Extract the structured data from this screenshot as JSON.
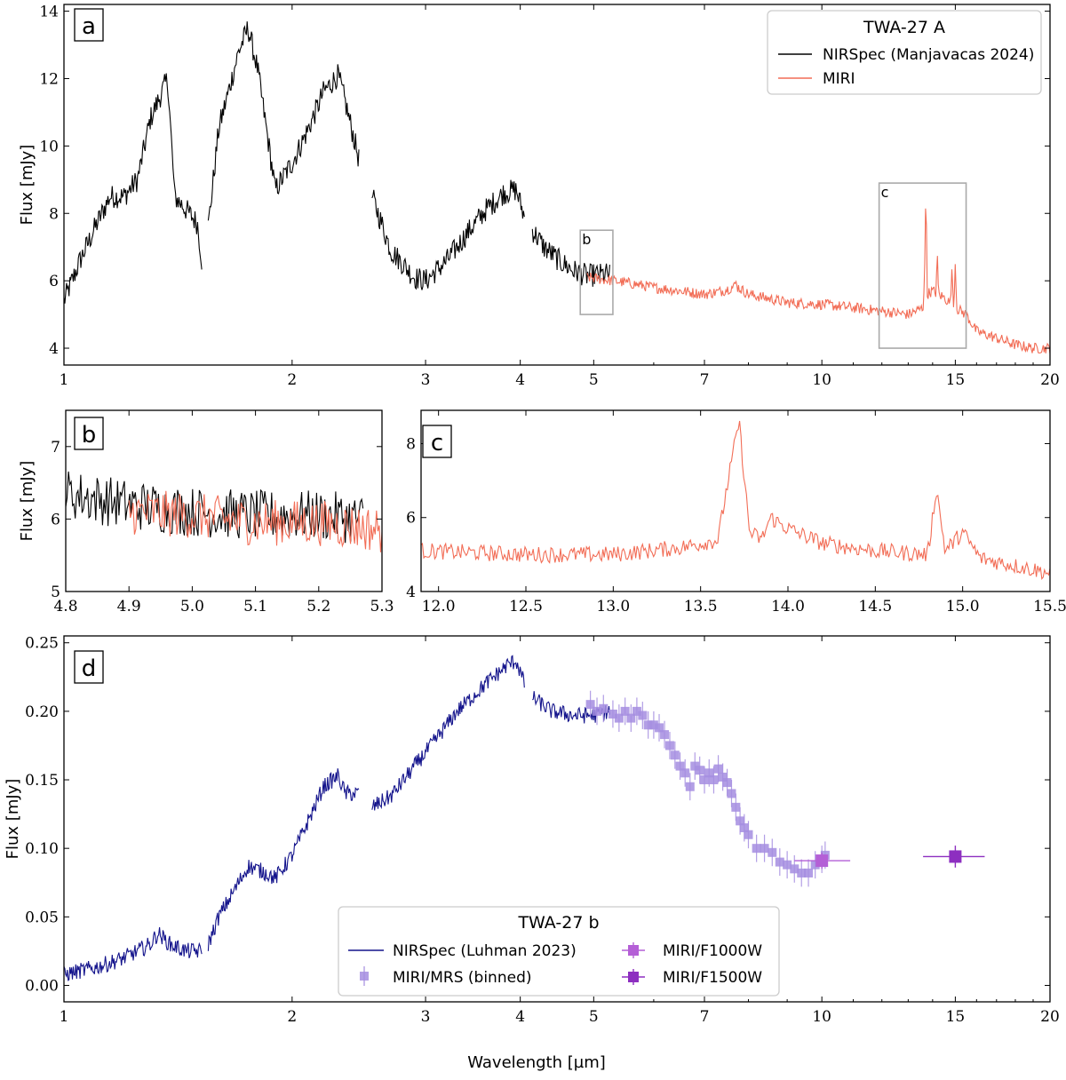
{
  "chart_data": [
    {
      "id": "a",
      "type": "line",
      "panel_label": "a",
      "xscale": "log",
      "xlim": [
        1,
        20
      ],
      "ylim": [
        3.5,
        14.2
      ],
      "xticks": [
        1,
        2,
        3,
        4,
        5,
        7,
        10,
        15,
        20
      ],
      "xtick_labels": [
        "1",
        "2",
        "3",
        "4",
        "5",
        "7",
        "10",
        "15",
        "20"
      ],
      "yticks": [
        4,
        6,
        8,
        10,
        12,
        14
      ],
      "ytick_labels": [
        "4",
        "6",
        "8",
        "10",
        "12",
        "14"
      ],
      "ylabel": "Flux [mJy]",
      "legend_title": "TWA-27 A",
      "series": [
        {
          "name": "NIRSpec (Manjavacas 2024)",
          "color": "#000000",
          "noise": 0.35,
          "segments": [
            [
              [
                1.0,
                5.4
              ],
              [
                1.05,
                6.6
              ],
              [
                1.1,
                7.6
              ],
              [
                1.15,
                8.5
              ],
              [
                1.2,
                8.5
              ],
              [
                1.25,
                9.0
              ],
              [
                1.3,
                10.8
              ],
              [
                1.37,
                12.0
              ],
              [
                1.4,
                8.5
              ],
              [
                1.45,
                8.1
              ],
              [
                1.5,
                7.7
              ],
              [
                1.52,
                6.6
              ]
            ],
            [
              [
                1.55,
                7.6
              ],
              [
                1.6,
                10.5
              ],
              [
                1.7,
                12.8
              ],
              [
                1.75,
                13.5
              ],
              [
                1.8,
                12.3
              ],
              [
                1.9,
                8.7
              ],
              [
                2.0,
                9.5
              ],
              [
                2.1,
                10.5
              ],
              [
                2.2,
                11.6
              ],
              [
                2.3,
                12.1
              ],
              [
                2.35,
                11.3
              ],
              [
                2.45,
                9.6
              ]
            ],
            [
              [
                2.55,
                8.5
              ],
              [
                2.7,
                6.9
              ],
              [
                2.9,
                6.1
              ],
              [
                3.0,
                6.0
              ],
              [
                3.2,
                6.6
              ],
              [
                3.4,
                7.4
              ],
              [
                3.6,
                8.1
              ],
              [
                3.8,
                8.6
              ],
              [
                3.95,
                8.7
              ],
              [
                4.05,
                7.9
              ]
            ],
            [
              [
                4.15,
                7.5
              ],
              [
                4.3,
                7.0
              ],
              [
                4.5,
                6.6
              ],
              [
                4.7,
                6.3
              ],
              [
                4.9,
                6.15
              ],
              [
                5.25,
                6.2
              ]
            ]
          ]
        },
        {
          "name": "MIRI",
          "color": "#f26d56",
          "noise": 0.16,
          "segments": [
            [
              [
                4.9,
                6.1
              ],
              [
                5.5,
                5.95
              ],
              [
                6.0,
                5.8
              ],
              [
                6.5,
                5.7
              ],
              [
                7.0,
                5.6
              ],
              [
                7.4,
                5.7
              ],
              [
                7.7,
                5.85
              ],
              [
                8.0,
                5.6
              ],
              [
                9.0,
                5.35
              ],
              [
                10.0,
                5.3
              ],
              [
                11.0,
                5.2
              ],
              [
                12.0,
                5.1
              ],
              [
                13.0,
                5.0
              ],
              [
                13.6,
                5.2
              ],
              [
                13.7,
                6.8
              ],
              [
                13.75,
                5.6
              ],
              [
                14.0,
                5.7
              ],
              [
                14.5,
                5.5
              ],
              [
                15.0,
                5.2
              ],
              [
                15.5,
                5.0
              ],
              [
                16.0,
                4.5
              ],
              [
                17.0,
                4.3
              ],
              [
                18.0,
                4.1
              ],
              [
                19.0,
                4.0
              ],
              [
                20.0,
                4.0
              ]
            ]
          ],
          "peaks": [
            [
              13.72,
              8.7
            ],
            [
              14.2,
              6.9
            ],
            [
              14.85,
              6.5
            ],
            [
              15.0,
              6.6
            ],
            [
              7.7,
              6.0
            ]
          ]
        }
      ],
      "inset_labels": [
        "b",
        "c"
      ]
    },
    {
      "id": "b",
      "type": "line",
      "panel_label": "b",
      "xscale": "linear",
      "xlim": [
        4.8,
        5.3
      ],
      "ylim": [
        5.0,
        7.5
      ],
      "xticks": [
        4.8,
        4.9,
        5.0,
        5.1,
        5.2,
        5.3
      ],
      "xtick_labels": [
        "4.8",
        "4.9",
        "5.0",
        "5.1",
        "5.2",
        "5.3"
      ],
      "yticks": [
        5,
        6,
        7
      ],
      "ytick_labels": [
        "5",
        "6",
        "7"
      ],
      "ylabel": "Flux [mJy]",
      "series": [
        {
          "name": "NIRSpec",
          "color": "#000000",
          "noise": 0.35,
          "segments": [
            [
              [
                4.8,
                6.35
              ],
              [
                4.9,
                6.2
              ],
              [
                5.0,
                6.1
              ],
              [
                5.1,
                6.05
              ],
              [
                5.2,
                6.05
              ],
              [
                5.27,
                6.0
              ]
            ]
          ]
        },
        {
          "name": "MIRI",
          "color": "#f26d56",
          "noise": 0.32,
          "segments": [
            [
              [
                4.9,
                6.1
              ],
              [
                5.0,
                6.05
              ],
              [
                5.1,
                5.95
              ],
              [
                5.2,
                5.95
              ],
              [
                5.3,
                5.85
              ]
            ]
          ]
        }
      ]
    },
    {
      "id": "c",
      "type": "line",
      "panel_label": "c",
      "xscale": "linear",
      "xlim": [
        11.9,
        15.5
      ],
      "ylim": [
        4.0,
        8.9
      ],
      "xticks": [
        12.0,
        12.5,
        13.0,
        13.5,
        14.0,
        14.5,
        15.0,
        15.5
      ],
      "xtick_labels": [
        "12.0",
        "12.5",
        "13.0",
        "13.5",
        "14.0",
        "14.5",
        "15.0",
        "15.5"
      ],
      "yticks": [
        4,
        6,
        8
      ],
      "ytick_labels": [
        "4",
        "6",
        "8"
      ],
      "series": [
        {
          "name": "MIRI",
          "color": "#f26d56",
          "noise": 0.22,
          "segments": [
            [
              [
                11.9,
                5.1
              ],
              [
                12.5,
                5.0
              ],
              [
                13.0,
                5.0
              ],
              [
                13.4,
                5.2
              ],
              [
                13.6,
                5.4
              ],
              [
                13.65,
                6.8
              ],
              [
                13.72,
                8.6
              ],
              [
                13.78,
                5.6
              ],
              [
                13.85,
                5.4
              ],
              [
                13.9,
                6.0
              ],
              [
                14.0,
                5.7
              ],
              [
                14.2,
                5.3
              ],
              [
                14.5,
                5.1
              ],
              [
                14.8,
                5.0
              ],
              [
                14.85,
                6.8
              ],
              [
                14.9,
                5.1
              ],
              [
                15.0,
                5.6
              ],
              [
                15.1,
                4.9
              ],
              [
                15.3,
                4.7
              ],
              [
                15.5,
                4.5
              ]
            ]
          ]
        }
      ]
    },
    {
      "id": "d",
      "type": "line",
      "panel_label": "d",
      "xscale": "log",
      "xlim": [
        1,
        20
      ],
      "ylim": [
        -0.012,
        0.255
      ],
      "xticks": [
        1,
        2,
        3,
        4,
        5,
        7,
        10,
        15,
        20
      ],
      "xtick_labels": [
        "1",
        "2",
        "3",
        "4",
        "5",
        "7",
        "10",
        "15",
        "20"
      ],
      "yticks": [
        0.0,
        0.05,
        0.1,
        0.15,
        0.2,
        0.25
      ],
      "ytick_labels": [
        "0.00",
        "0.05",
        "0.10",
        "0.15",
        "0.20",
        "0.25"
      ],
      "ylabel": "Flux [mJy]",
      "xlabel": "Wavelength [µm]",
      "legend_title": "TWA-27 b",
      "series": [
        {
          "name": "NIRSpec (Luhman 2023)",
          "color": "#14148c",
          "noise": 0.006,
          "segments": [
            [
              [
                1.0,
                0.008
              ],
              [
                1.1,
                0.013
              ],
              [
                1.2,
                0.02
              ],
              [
                1.3,
                0.03
              ],
              [
                1.33,
                0.038
              ],
              [
                1.38,
                0.03
              ],
              [
                1.45,
                0.025
              ],
              [
                1.52,
                0.025
              ]
            ],
            [
              [
                1.55,
                0.03
              ],
              [
                1.6,
                0.05
              ],
              [
                1.7,
                0.075
              ],
              [
                1.75,
                0.087
              ],
              [
                1.85,
                0.082
              ],
              [
                1.9,
                0.078
              ],
              [
                2.0,
                0.095
              ],
              [
                2.1,
                0.12
              ],
              [
                2.2,
                0.145
              ],
              [
                2.3,
                0.153
              ],
              [
                2.35,
                0.14
              ],
              [
                2.45,
                0.14
              ]
            ],
            [
              [
                2.55,
                0.13
              ],
              [
                2.7,
                0.138
              ],
              [
                2.9,
                0.16
              ],
              [
                3.1,
                0.18
              ],
              [
                3.3,
                0.2
              ],
              [
                3.6,
                0.22
              ],
              [
                3.85,
                0.234
              ],
              [
                3.95,
                0.237
              ],
              [
                4.05,
                0.22
              ]
            ],
            [
              [
                4.15,
                0.21
              ],
              [
                4.4,
                0.2
              ],
              [
                4.7,
                0.197
              ],
              [
                5.0,
                0.197
              ],
              [
                5.25,
                0.2
              ]
            ]
          ]
        },
        {
          "name": "MIRI/MRS (binned)",
          "color": "#a48de0",
          "points": [
            [
              4.95,
              0.205
            ],
            [
              5.05,
              0.2
            ],
            [
              5.15,
              0.202
            ],
            [
              5.3,
              0.198
            ],
            [
              5.4,
              0.195
            ],
            [
              5.5,
              0.2
            ],
            [
              5.6,
              0.195
            ],
            [
              5.7,
              0.2
            ],
            [
              5.8,
              0.197
            ],
            [
              5.9,
              0.19
            ],
            [
              6.0,
              0.19
            ],
            [
              6.1,
              0.188
            ],
            [
              6.2,
              0.183
            ],
            [
              6.3,
              0.175
            ],
            [
              6.4,
              0.168
            ],
            [
              6.5,
              0.16
            ],
            [
              6.6,
              0.155
            ],
            [
              6.7,
              0.145
            ],
            [
              6.8,
              0.16
            ],
            [
              6.9,
              0.157
            ],
            [
              7.0,
              0.15
            ],
            [
              7.1,
              0.155
            ],
            [
              7.2,
              0.15
            ],
            [
              7.3,
              0.158
            ],
            [
              7.4,
              0.152
            ],
            [
              7.5,
              0.148
            ],
            [
              7.6,
              0.14
            ],
            [
              7.7,
              0.13
            ],
            [
              7.8,
              0.12
            ],
            [
              7.9,
              0.115
            ],
            [
              8.0,
              0.11
            ],
            [
              8.2,
              0.1
            ],
            [
              8.4,
              0.1
            ],
            [
              8.6,
              0.097
            ],
            [
              8.8,
              0.09
            ],
            [
              9.0,
              0.088
            ],
            [
              9.2,
              0.085
            ],
            [
              9.4,
              0.082
            ],
            [
              9.6,
              0.082
            ],
            [
              9.8,
              0.088
            ],
            [
              10.0,
              0.092
            ],
            [
              10.1,
              0.095
            ]
          ],
          "err": 0.01
        },
        {
          "name": "MIRI/F1000W",
          "color": "#b45fd6",
          "x": 10.0,
          "y": 0.091,
          "xerr": [
            9.2,
            10.9
          ],
          "yerr": 0.006
        },
        {
          "name": "MIRI/F1500W",
          "color": "#8d2fc0",
          "x": 15.0,
          "y": 0.094,
          "xerr": [
            13.6,
            16.4
          ],
          "yerr": 0.008
        }
      ]
    }
  ]
}
